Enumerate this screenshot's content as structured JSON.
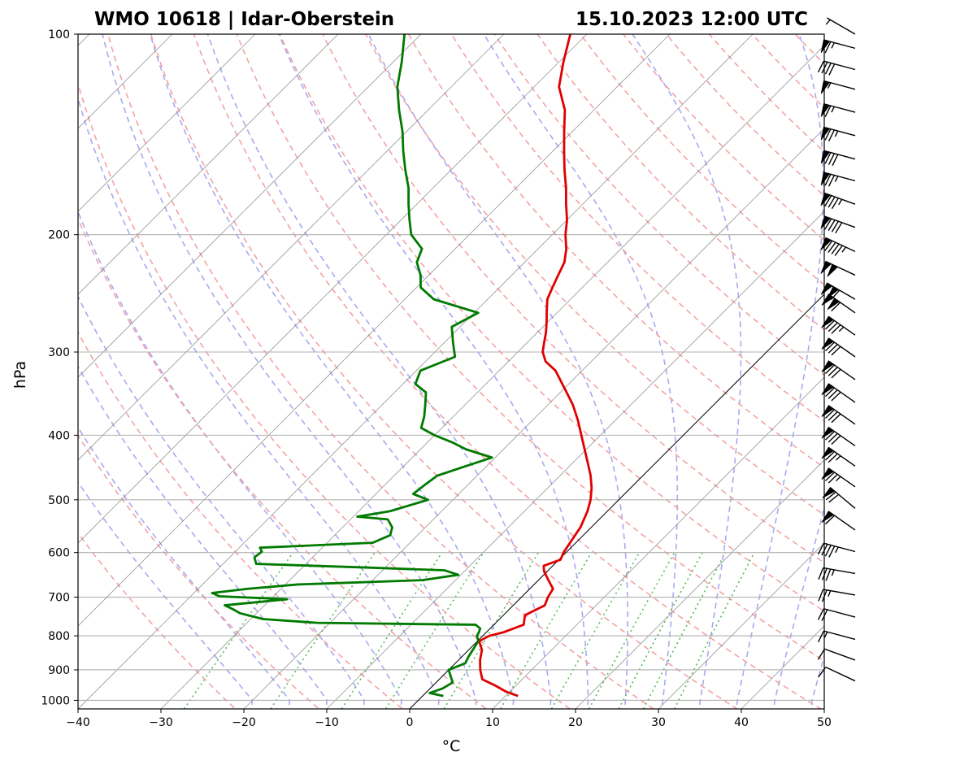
{
  "chart_data": {
    "type": "line",
    "title_left": "WMO 10618 | Idar-Oberstein",
    "title_right": "15.10.2023 12:00 UTC",
    "xlabel": "°C",
    "ylabel": "hPa",
    "xlim": [
      -40,
      50
    ],
    "ylim": [
      1030,
      100
    ],
    "x_ticks": [
      "−40",
      "−30",
      "−20",
      "−10",
      "0",
      "10",
      "20",
      "30",
      "40",
      "50"
    ],
    "y_ticks": [
      "100",
      "200",
      "300",
      "400",
      "500",
      "600",
      "700",
      "800",
      "900",
      "1000"
    ],
    "y_scale": "log",
    "skew": true,
    "grid": true,
    "colors": {
      "temperature": "#e00000",
      "dewpoint": "#007a00",
      "dry_adiabats": "#f4a3a3",
      "moist_adiabats": "#a9a9f0",
      "mixing_ratio": "#55bb55",
      "isotherms": "#777777",
      "zero_isotherm": "#000000"
    },
    "series": [
      {
        "key": "temperature",
        "points": [
          [
            985,
            11.5
          ],
          [
            970,
            9.5
          ],
          [
            950,
            7.5
          ],
          [
            930,
            5.2
          ],
          [
            900,
            3.8
          ],
          [
            870,
            2.6
          ],
          [
            840,
            1.6
          ],
          [
            815,
            0.2
          ],
          [
            800,
            0.8
          ],
          [
            790,
            2.1
          ],
          [
            770,
            3.6
          ],
          [
            745,
            2.6
          ],
          [
            720,
            3.8
          ],
          [
            700,
            3.2
          ],
          [
            680,
            2.8
          ],
          [
            660,
            1.2
          ],
          [
            640,
            -0.4
          ],
          [
            628,
            -1.1
          ],
          [
            615,
            0.2
          ],
          [
            600,
            -0.3
          ],
          [
            580,
            -0.7
          ],
          [
            550,
            -1.3
          ],
          [
            520,
            -2.4
          ],
          [
            500,
            -3.4
          ],
          [
            480,
            -4.7
          ],
          [
            460,
            -6.3
          ],
          [
            440,
            -8.2
          ],
          [
            420,
            -10.2
          ],
          [
            400,
            -12.3
          ],
          [
            380,
            -14.5
          ],
          [
            360,
            -17.0
          ],
          [
            340,
            -20.0
          ],
          [
            320,
            -23.2
          ],
          [
            310,
            -25.5
          ],
          [
            300,
            -27.0
          ],
          [
            290,
            -28.0
          ],
          [
            280,
            -29.0
          ],
          [
            270,
            -30.2
          ],
          [
            260,
            -31.5
          ],
          [
            250,
            -32.8
          ],
          [
            240,
            -33.6
          ],
          [
            230,
            -34.4
          ],
          [
            220,
            -35.2
          ],
          [
            210,
            -36.6
          ],
          [
            200,
            -38.4
          ],
          [
            190,
            -40.0
          ],
          [
            180,
            -42.0
          ],
          [
            170,
            -44.0
          ],
          [
            160,
            -46.3
          ],
          [
            150,
            -48.6
          ],
          [
            140,
            -51.0
          ],
          [
            130,
            -53.5
          ],
          [
            120,
            -57.0
          ],
          [
            110,
            -59.5
          ],
          [
            100,
            -62.0
          ]
        ]
      },
      {
        "key": "dewpoint",
        "points": [
          [
            985,
            2.5
          ],
          [
            975,
            0.5
          ],
          [
            960,
            1.5
          ],
          [
            940,
            2.0
          ],
          [
            920,
            1.0
          ],
          [
            900,
            0.0
          ],
          [
            880,
            1.2
          ],
          [
            860,
            0.8
          ],
          [
            840,
            0.5
          ],
          [
            815,
            0.1
          ],
          [
            800,
            -0.7
          ],
          [
            790,
            -0.9
          ],
          [
            780,
            -1.2
          ],
          [
            770,
            -2.2
          ],
          [
            765,
            -21.5
          ],
          [
            755,
            -28.5
          ],
          [
            740,
            -32.0
          ],
          [
            730,
            -33.3
          ],
          [
            720,
            -34.8
          ],
          [
            705,
            -28.0
          ],
          [
            698,
            -36.5
          ],
          [
            690,
            -37.8
          ],
          [
            680,
            -34.0
          ],
          [
            670,
            -28.5
          ],
          [
            660,
            -14.0
          ],
          [
            648,
            -10.3
          ],
          [
            638,
            -12.5
          ],
          [
            632,
            -22.0
          ],
          [
            624,
            -36.0
          ],
          [
            610,
            -37.0
          ],
          [
            598,
            -36.8
          ],
          [
            590,
            -37.5
          ],
          [
            580,
            -24.5
          ],
          [
            565,
            -23.3
          ],
          [
            550,
            -24.0
          ],
          [
            535,
            -25.5
          ],
          [
            530,
            -29.5
          ],
          [
            520,
            -26.2
          ],
          [
            500,
            -23.0
          ],
          [
            490,
            -25.5
          ],
          [
            475,
            -25.2
          ],
          [
            460,
            -24.8
          ],
          [
            445,
            -22.5
          ],
          [
            432,
            -20.4
          ],
          [
            420,
            -24.5
          ],
          [
            410,
            -27.0
          ],
          [
            400,
            -30.0
          ],
          [
            390,
            -32.5
          ],
          [
            375,
            -33.5
          ],
          [
            360,
            -34.8
          ],
          [
            345,
            -36.2
          ],
          [
            335,
            -38.5
          ],
          [
            320,
            -39.5
          ],
          [
            305,
            -37.0
          ],
          [
            290,
            -39.0
          ],
          [
            275,
            -41.0
          ],
          [
            262,
            -39.5
          ],
          [
            250,
            -46.5
          ],
          [
            240,
            -49.5
          ],
          [
            230,
            -51.0
          ],
          [
            220,
            -53.0
          ],
          [
            210,
            -54.0
          ],
          [
            200,
            -57.0
          ],
          [
            190,
            -59.0
          ],
          [
            180,
            -61.0
          ],
          [
            170,
            -63.0
          ],
          [
            160,
            -65.5
          ],
          [
            150,
            -68.0
          ],
          [
            140,
            -70.5
          ],
          [
            130,
            -73.5
          ],
          [
            120,
            -76.5
          ],
          [
            110,
            -79.0
          ],
          [
            100,
            -82.0
          ]
        ]
      }
    ],
    "wind_barbs": [
      {
        "p": 100,
        "dir": 300,
        "kt": 5
      },
      {
        "p": 105,
        "dir": 285,
        "kt": 65
      },
      {
        "p": 113,
        "dir": 285,
        "kt": 40
      },
      {
        "p": 121,
        "dir": 285,
        "kt": 55
      },
      {
        "p": 131,
        "dir": 285,
        "kt": 65
      },
      {
        "p": 142,
        "dir": 285,
        "kt": 75
      },
      {
        "p": 154,
        "dir": 285,
        "kt": 80
      },
      {
        "p": 166,
        "dir": 285,
        "kt": 75
      },
      {
        "p": 180,
        "dir": 290,
        "kt": 85
      },
      {
        "p": 195,
        "dir": 290,
        "kt": 90
      },
      {
        "p": 212,
        "dir": 295,
        "kt": 95
      },
      {
        "p": 230,
        "dir": 295,
        "kt": 100
      },
      {
        "p": 250,
        "dir": 300,
        "kt": 110
      },
      {
        "p": 262,
        "dir": 305,
        "kt": 110
      },
      {
        "p": 283,
        "dir": 305,
        "kt": 85
      },
      {
        "p": 305,
        "dir": 305,
        "kt": 80
      },
      {
        "p": 330,
        "dir": 305,
        "kt": 80
      },
      {
        "p": 357,
        "dir": 305,
        "kt": 80
      },
      {
        "p": 385,
        "dir": 305,
        "kt": 80
      },
      {
        "p": 415,
        "dir": 305,
        "kt": 80
      },
      {
        "p": 445,
        "dir": 305,
        "kt": 75
      },
      {
        "p": 478,
        "dir": 305,
        "kt": 75
      },
      {
        "p": 515,
        "dir": 310,
        "kt": 70
      },
      {
        "p": 555,
        "dir": 305,
        "kt": 60
      },
      {
        "p": 598,
        "dir": 285,
        "kt": 45
      },
      {
        "p": 645,
        "dir": 280,
        "kt": 35
      },
      {
        "p": 695,
        "dir": 280,
        "kt": 25
      },
      {
        "p": 750,
        "dir": 285,
        "kt": 20
      },
      {
        "p": 810,
        "dir": 285,
        "kt": 15
      },
      {
        "p": 870,
        "dir": 290,
        "kt": 10
      },
      {
        "p": 935,
        "dir": 295,
        "kt": 10
      }
    ]
  }
}
